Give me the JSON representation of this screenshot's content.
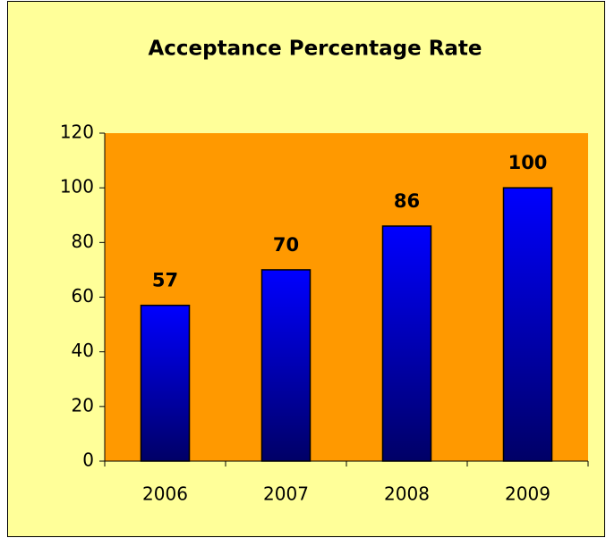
{
  "chart_data": {
    "type": "bar",
    "title": "Acceptance Percentage Rate",
    "categories": [
      "2006",
      "2007",
      "2008",
      "2009"
    ],
    "values": [
      57,
      70,
      86,
      100
    ],
    "ylim": [
      0,
      120
    ],
    "yticks": [
      0,
      20,
      40,
      60,
      80,
      100,
      120
    ],
    "background": "#ffff99",
    "plot_background": "#ff9900",
    "color": "#0000ff",
    "color_bottom": "#000066"
  }
}
